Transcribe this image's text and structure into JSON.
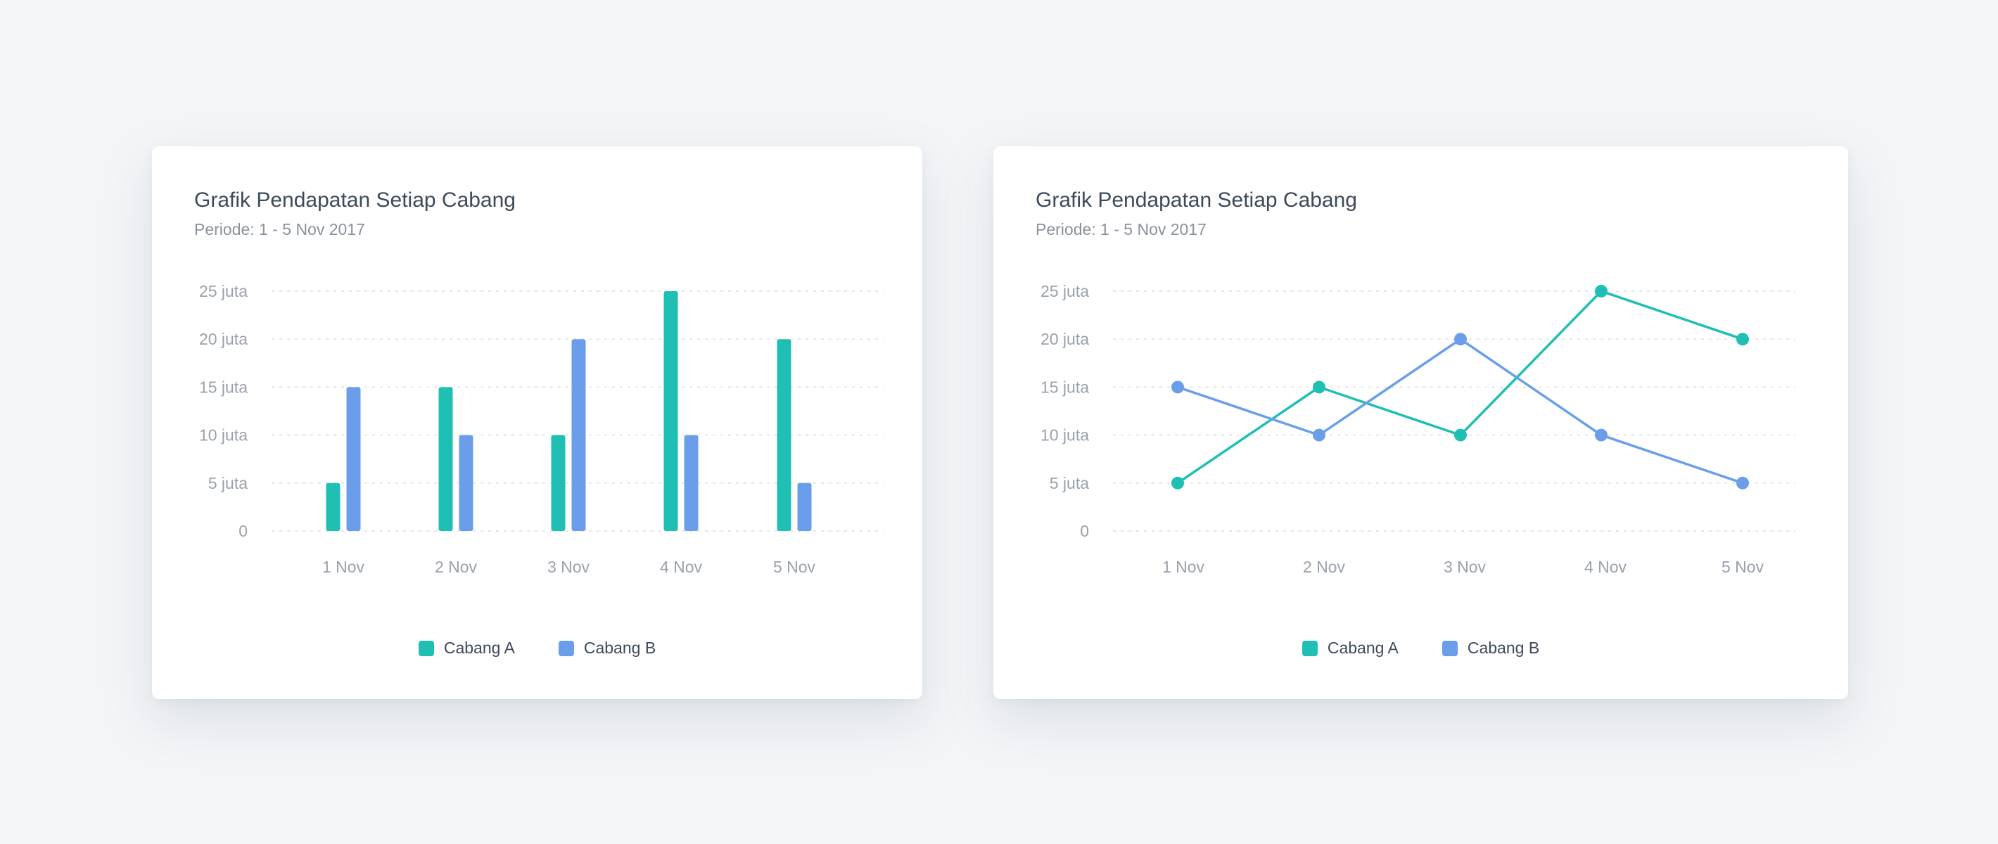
{
  "colors": {
    "cabang_a": "#1fbfb4",
    "cabang_b": "#6b9eea"
  },
  "chart_data": [
    {
      "type": "bar",
      "title": "Grafik Pendapatan Setiap Cabang",
      "subtitle": "Periode: 1 - 5 Nov 2017",
      "categories": [
        "1 Nov",
        "2 Nov",
        "3 Nov",
        "4 Nov",
        "5 Nov"
      ],
      "series": [
        {
          "name": "Cabang A",
          "values": [
            5,
            15,
            10,
            25,
            20
          ]
        },
        {
          "name": "Cabang B",
          "values": [
            15,
            10,
            20,
            10,
            5
          ]
        }
      ],
      "yticks": [
        0,
        5,
        10,
        15,
        20,
        25
      ],
      "ytick_labels": [
        "0",
        "5 juta",
        "10 juta",
        "15 juta",
        "20 juta",
        "25 juta"
      ],
      "ylim": [
        0,
        25
      ],
      "grid": true,
      "legend": "bottom"
    },
    {
      "type": "line",
      "title": "Grafik Pendapatan Setiap Cabang",
      "subtitle": "Periode: 1 - 5 Nov 2017",
      "categories": [
        "1 Nov",
        "2 Nov",
        "3 Nov",
        "4 Nov",
        "5 Nov"
      ],
      "series": [
        {
          "name": "Cabang A",
          "values": [
            5,
            15,
            10,
            25,
            20
          ]
        },
        {
          "name": "Cabang B",
          "values": [
            15,
            10,
            20,
            10,
            5
          ]
        }
      ],
      "yticks": [
        0,
        5,
        10,
        15,
        20,
        25
      ],
      "ytick_labels": [
        "0",
        "5 juta",
        "10 juta",
        "15 juta",
        "20 juta",
        "25 juta"
      ],
      "ylim": [
        0,
        25
      ],
      "grid": true,
      "legend": "bottom"
    }
  ]
}
